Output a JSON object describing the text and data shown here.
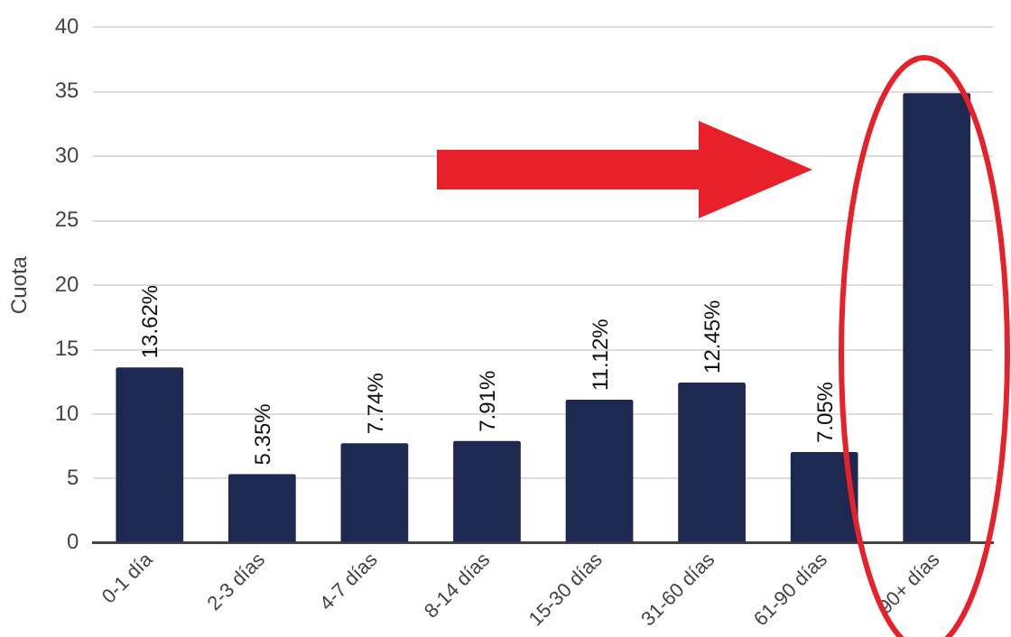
{
  "chart_data": {
    "type": "bar",
    "ylabel": "Cuota",
    "categories": [
      "0-1 día",
      "2-3 días",
      "4-7 días",
      "8-14 días",
      "15-30 días",
      "31-60 días",
      "61-90 días",
      "90+ días"
    ],
    "values": [
      13.62,
      5.35,
      7.74,
      7.91,
      11.12,
      12.45,
      7.05,
      34.9
    ],
    "value_labels": [
      "13.62%",
      "5.35%",
      "7.74%",
      "7.91%",
      "11.12%",
      "12.45%",
      "7.05%",
      null
    ],
    "color": "#1d2951",
    "ylim": [
      0,
      40
    ],
    "yticks": [
      0,
      5,
      10,
      15,
      20,
      25,
      30,
      35,
      40
    ],
    "grid": "y",
    "legend": false
  }
}
